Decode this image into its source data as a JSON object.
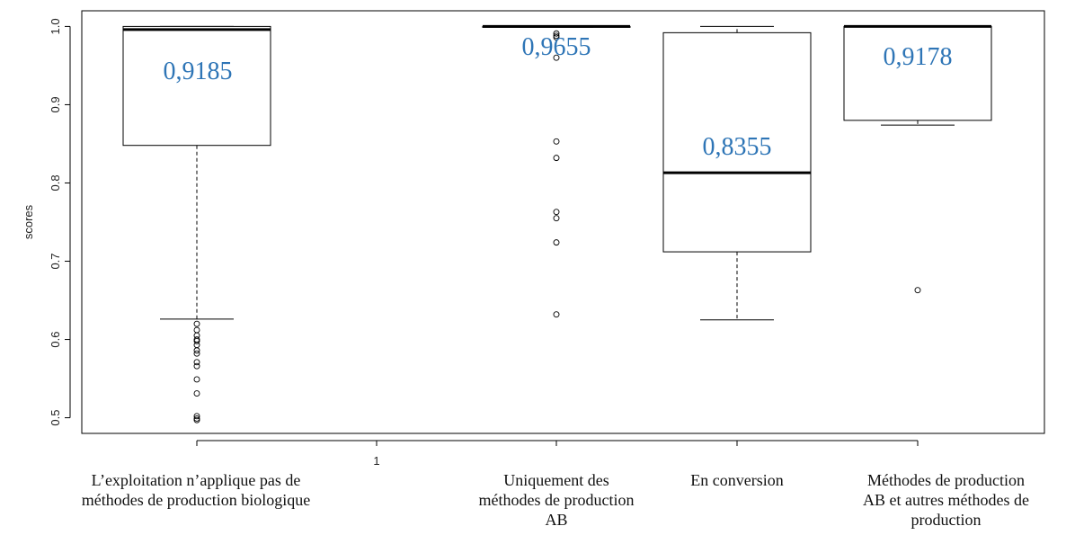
{
  "chart_data": {
    "type": "boxplot",
    "ylabel": "scores",
    "ylim": [
      0.48,
      1.02
    ],
    "yticks": [
      "0.5",
      "0.6",
      "0.7",
      "0.8",
      "0.9",
      "1.0"
    ],
    "xaxis_tick_label": "1",
    "categories": [
      "L’exploitation n’applique pas de\nméthodes de production biologique",
      "Uniquement des\nméthodes de production\nAB",
      "En conversion",
      "Méthodes de production\nAB et autres méthodes de\nproduction"
    ],
    "boxes": [
      {
        "q1": 0.848,
        "median": 0.996,
        "q3": 1.0,
        "whisker_low": 0.626,
        "whisker_high": 1.0,
        "outliers": [
          0.62,
          0.612,
          0.605,
          0.6,
          0.598,
          0.593,
          0.586,
          0.582,
          0.571,
          0.566,
          0.549,
          0.531,
          0.502,
          0.499,
          0.497
        ],
        "mean_label": "0,9185"
      },
      {
        "q1": 0.999,
        "median": 1.0,
        "q3": 1.0,
        "whisker_low": 0.999,
        "whisker_high": 1.0,
        "outliers": [
          0.991,
          0.988,
          0.986,
          0.96,
          0.853,
          0.832,
          0.763,
          0.755,
          0.724,
          0.632
        ],
        "mean_label": "0,9655"
      },
      {
        "q1": 0.712,
        "median": 0.813,
        "q3": 0.992,
        "whisker_low": 0.625,
        "whisker_high": 1.0,
        "outliers": [],
        "mean_label": "0,8355"
      },
      {
        "q1": 0.88,
        "median": 1.0,
        "q3": 1.0,
        "whisker_low": 0.874,
        "whisker_high": 1.0,
        "outliers": [
          0.663
        ],
        "mean_label": "0,9178"
      }
    ],
    "colors": {
      "box": "#000000",
      "mean_label": "#2e75b6"
    }
  }
}
